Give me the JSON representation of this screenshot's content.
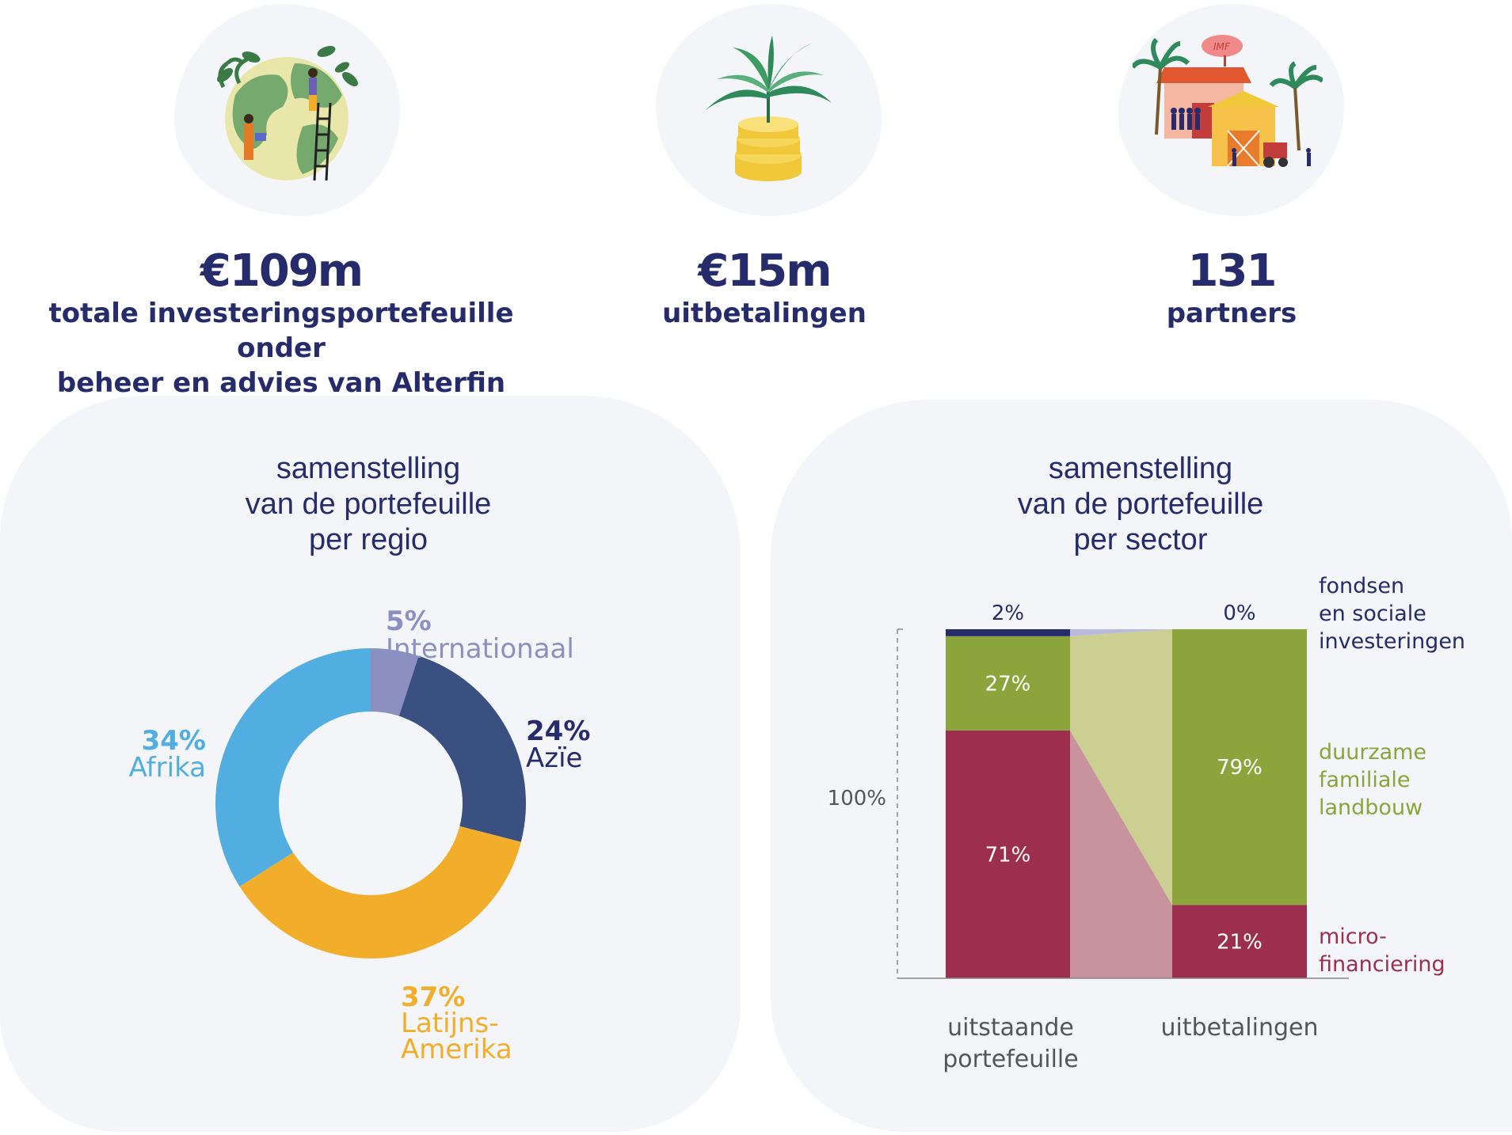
{
  "stats": [
    {
      "value": "€109m",
      "label_lines": [
        "totale investeringsportefeuille onder",
        "beheer en advies van Alterfin"
      ],
      "icon": "globe-planting-icon"
    },
    {
      "value": "€15m",
      "label_lines": [
        "uitbetalingen"
      ],
      "icon": "plant-on-coins-icon"
    },
    {
      "value": "131",
      "label_lines": [
        "partners"
      ],
      "icon": "partner-buildings-icon"
    }
  ],
  "icon_text": {
    "imf": "IMF"
  },
  "colors": {
    "navy": "#262b6b",
    "panel_bg": "#f4f5f9",
    "afrika": "#52aee0",
    "azie": "#3a5081",
    "latijns_amerika": "#f2ae2b",
    "internationaal": "#8b90c0",
    "microfinanciering": "#9b2f4d",
    "landbouw": "#8ba43b",
    "fondsen": "#262b6b"
  },
  "chart_data": [
    {
      "type": "pie",
      "donut": true,
      "title_lines": [
        "samenstelling",
        "van de portefeuille",
        "per regio"
      ],
      "slices": [
        {
          "pct_label": "5%",
          "name_lines": [
            "Internationaal"
          ],
          "value": 5,
          "color_key": "internationaal"
        },
        {
          "pct_label": "24%",
          "name_lines": [
            "Azïe"
          ],
          "value": 24,
          "color_key": "azie"
        },
        {
          "pct_label": "37%",
          "name_lines": [
            "Latijns-",
            "Amerika"
          ],
          "value": 37,
          "color_key": "latijns_amerika"
        },
        {
          "pct_label": "34%",
          "name_lines": [
            "Afrika"
          ],
          "value": 34,
          "color_key": "afrika"
        }
      ]
    },
    {
      "type": "bar",
      "stacked": true,
      "title_lines": [
        "samenstelling",
        "van de portefeuille",
        "per sector"
      ],
      "ylabel": "100%",
      "categories": [
        {
          "lines": [
            "uitstaande",
            "portefeuille"
          ]
        },
        {
          "lines": [
            "uitbetalingen"
          ]
        }
      ],
      "series": [
        {
          "name_lines": [
            "micro-",
            "financiering"
          ],
          "values": [
            71,
            21
          ],
          "labels": [
            "71%",
            "21%"
          ],
          "color_key": "microfinanciering"
        },
        {
          "name_lines": [
            "duurzame",
            "familiale",
            "landbouw"
          ],
          "values": [
            27,
            79
          ],
          "labels": [
            "27%",
            "79%"
          ],
          "color_key": "landbouw"
        },
        {
          "name_lines": [
            "fondsen",
            "en sociale",
            "investeringen"
          ],
          "values": [
            2,
            0
          ],
          "labels": [
            "2%",
            "0%"
          ],
          "color_key": "fondsen"
        }
      ]
    }
  ]
}
